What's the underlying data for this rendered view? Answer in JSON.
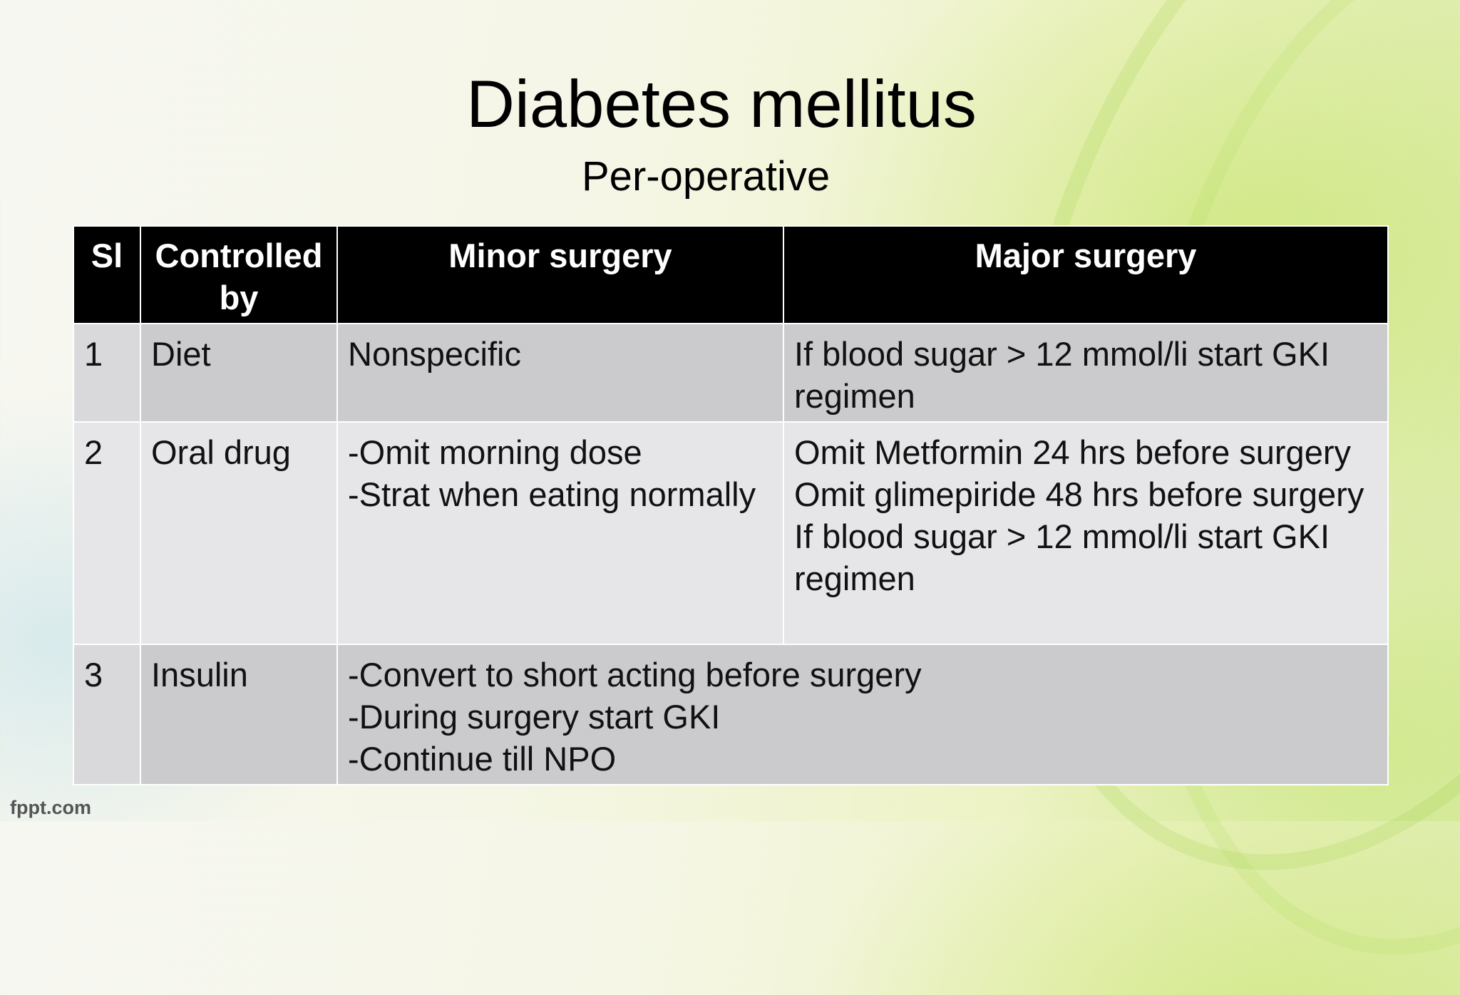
{
  "slide": {
    "title": "Diabetes mellitus",
    "subtitle": "Per-operative",
    "footer": "fppt.com"
  },
  "table": {
    "headers": [
      "Sl",
      "Controlled by",
      "Minor surgery",
      "Major surgery"
    ],
    "rows": [
      {
        "sl": "1",
        "controlled_by": "Diet",
        "minor": [
          "Nonspecific"
        ],
        "major": [
          "If blood sugar > 12 mmol/li start GKI regimen"
        ]
      },
      {
        "sl": "2",
        "controlled_by": "Oral drug",
        "minor": [
          "-Omit morning dose",
          "-Strat when eating normally"
        ],
        "major": [
          "Omit Metformin 24 hrs before surgery",
          "Omit glimepiride 48 hrs before surgery",
          "If blood sugar > 12 mmol/li start GKI regimen"
        ]
      },
      {
        "sl": "3",
        "controlled_by": "Insulin",
        "combined": [
          "-Convert to short acting before surgery",
          "-During surgery start GKI",
          "-Continue till NPO"
        ]
      }
    ]
  }
}
